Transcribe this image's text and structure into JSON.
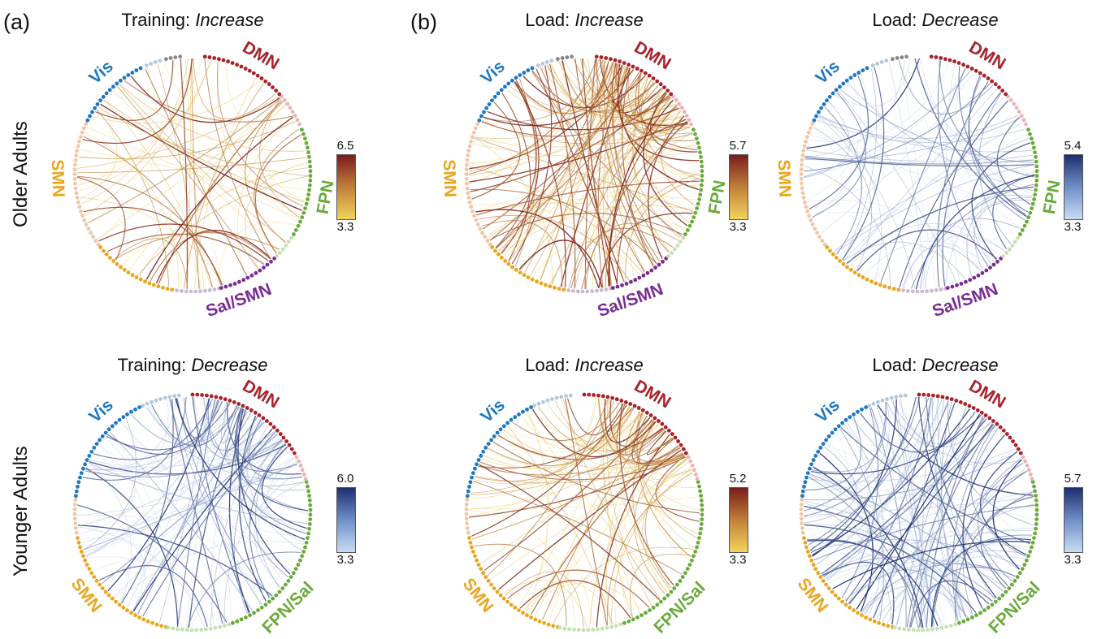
{
  "panel_letters": [
    "(a)",
    "(b)"
  ],
  "row_labels": {
    "older": "Older Adults",
    "younger": "Younger Adults"
  },
  "colors": {
    "vis": "#1f77c0",
    "vis_light": "#b5c9dc",
    "dmn": "#a8222a",
    "dmn_light": "#ebb3b3",
    "fpn": "#6aaa3a",
    "fpn_light": "#c4e1b4",
    "sal": "#7a2c92",
    "sal_light": "#cbb9d4",
    "smn": "#eaa51f",
    "smn_light": "#f0c7a6",
    "gray": "#888888",
    "warm_low": "#f2d45c",
    "warm_high": "#7a1c1c",
    "cool_low": "#c8dcf2",
    "cool_high": "#1f2f72"
  },
  "panels": [
    {
      "title_prefix": "Training: ",
      "title_em": "Increase",
      "scale_max": "6.5",
      "scale_min": "3.3",
      "palette": "warm",
      "labels": {
        "vis": "Vis",
        "dmn": "DMN",
        "fpn": "FPN",
        "sal": "Sal/SMN",
        "smn": "SMN"
      }
    },
    {
      "title_prefix": "Load: ",
      "title_em": "Increase",
      "scale_max": "5.7",
      "scale_min": "3.3",
      "palette": "warm",
      "labels": {
        "vis": "Vis",
        "dmn": "DMN",
        "fpn": "FPN",
        "sal": "Sal/SMN",
        "smn": "SMN"
      }
    },
    {
      "title_prefix": "Load: ",
      "title_em": "Decrease",
      "scale_max": "5.4",
      "scale_min": "3.3",
      "palette": "cool",
      "labels": {
        "vis": "Vis",
        "dmn": "DMN",
        "fpn": "FPN",
        "sal": "Sal/SMN",
        "smn": "SMN"
      }
    },
    {
      "title_prefix": "Training: ",
      "title_em": "Decrease",
      "scale_max": "6.0",
      "scale_min": "3.3",
      "palette": "cool",
      "labels": {
        "vis": "Vis",
        "dmn": "DMN",
        "fpn": "FPN/Sal",
        "smn": "SMN"
      }
    },
    {
      "title_prefix": "Load: ",
      "title_em": "Increase",
      "scale_max": "5.2",
      "scale_min": "3.3",
      "palette": "warm",
      "labels": {
        "vis": "Vis",
        "dmn": "DMN",
        "fpn": "FPN/Sal",
        "smn": "SMN"
      }
    },
    {
      "title_prefix": "Load: ",
      "title_em": "Decrease",
      "scale_max": "5.7",
      "scale_min": "3.3",
      "palette": "cool",
      "labels": {
        "vis": "Vis",
        "dmn": "DMN",
        "fpn": "FPN/Sal",
        "smn": "SMN"
      }
    }
  ]
}
